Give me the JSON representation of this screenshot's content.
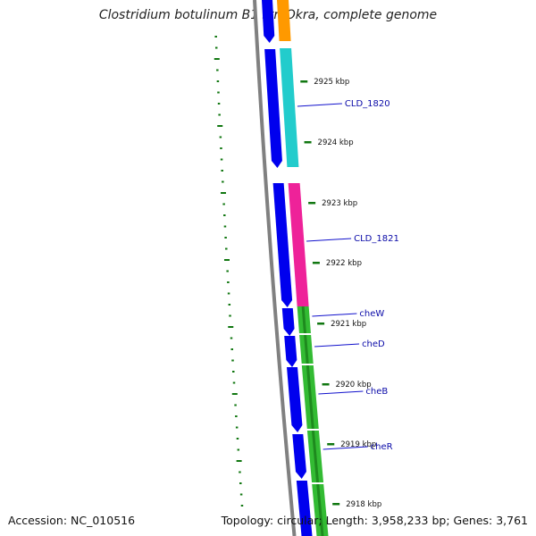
{
  "title": "Clostridium botulinum B1 str. Okra, complete genome",
  "footer": {
    "accession": "Accession: NC_010516",
    "summary": "Topology: circular; Length: 3,958,233 bp; Genes: 3,761"
  },
  "colors": {
    "cds": "#0000ee",
    "backbone": "#808080",
    "gc_skew": "#117711",
    "gene_orange": "#ff9900",
    "gene_cyan": "#22cccc",
    "gene_pink": "#ee2299",
    "gene_green": "#33bb33",
    "label": "#0a0aa8"
  },
  "ticks": [
    "2925 kbp",
    "2924 kbp",
    "2923 kbp",
    "2922 kbp",
    "2921 kbp",
    "2920 kbp",
    "2919 kbp",
    "2918 kbp"
  ],
  "genes": [
    {
      "name": "CLD_1820",
      "color": "cyan"
    },
    {
      "name": "CLD_1821",
      "color": "pink"
    },
    {
      "name": "cheW",
      "color": "green"
    },
    {
      "name": "cheD",
      "color": "green"
    },
    {
      "name": "cheB",
      "color": "green"
    },
    {
      "name": "cheR",
      "color": "green"
    }
  ]
}
